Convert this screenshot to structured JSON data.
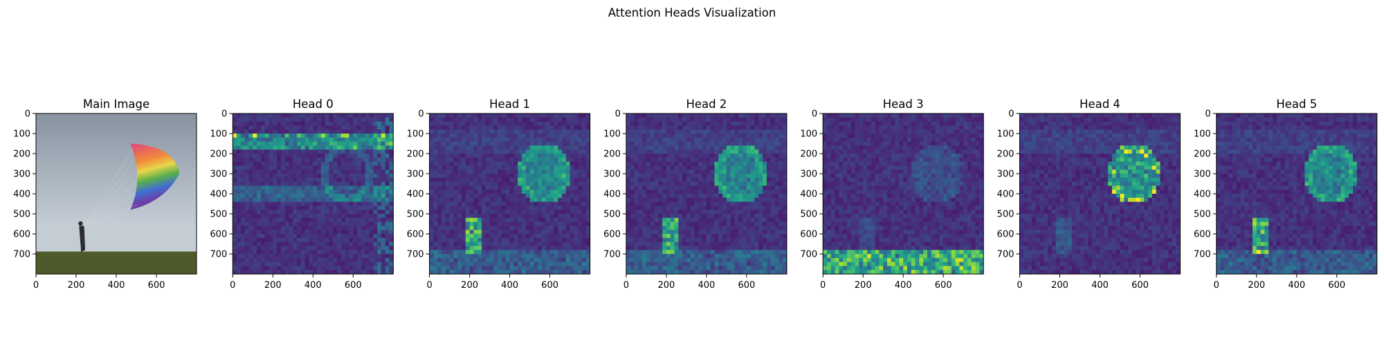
{
  "figure_title": "Attention Heads Visualization",
  "chart_data": {
    "type": "heatmap",
    "title": "Attention Heads Visualization",
    "colormap": "viridis",
    "panels": [
      {
        "title": "Main Image",
        "kind": "photo",
        "description_semantic": "paraglider-photo"
      },
      {
        "title": "Head 0",
        "kind": "attention",
        "focus": "upper-bands"
      },
      {
        "title": "Head 1",
        "kind": "attention",
        "focus": "wing-and-person"
      },
      {
        "title": "Head 2",
        "kind": "attention",
        "focus": "wing-and-person"
      },
      {
        "title": "Head 3",
        "kind": "attention",
        "focus": "ground"
      },
      {
        "title": "Head 4",
        "kind": "attention",
        "focus": "wing"
      },
      {
        "title": "Head 5",
        "kind": "attention",
        "focus": "wing-and-person"
      }
    ],
    "xticks": [
      "0",
      "200",
      "400",
      "600"
    ],
    "yticks": [
      "0",
      "100",
      "200",
      "300",
      "400",
      "500",
      "600",
      "700"
    ],
    "xlim": [
      0,
      800
    ],
    "ylim": [
      800,
      0
    ],
    "grid_size": 40
  }
}
